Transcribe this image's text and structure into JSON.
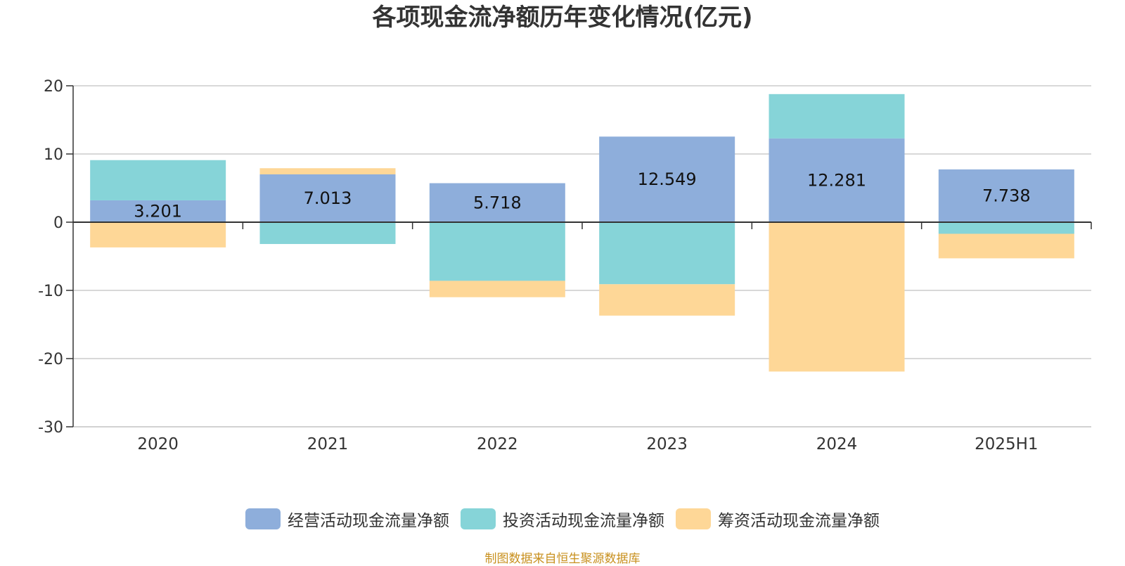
{
  "title": "各项现金流净额历年变化情况(亿元)",
  "source_note": "制图数据来自恒生聚源数据库",
  "chart_data": {
    "type": "bar",
    "stacked": true,
    "categories": [
      "2020",
      "2021",
      "2022",
      "2023",
      "2024",
      "2025H1"
    ],
    "series": [
      {
        "name": "经营活动现金流量净额",
        "color": "#8eaedb",
        "values": [
          3.201,
          7.013,
          5.718,
          12.549,
          12.281,
          7.738
        ]
      },
      {
        "name": "投资活动现金流量净额",
        "color": "#86d4d8",
        "values": [
          5.9,
          -3.2,
          -8.6,
          -9.1,
          6.5,
          -1.7
        ]
      },
      {
        "name": "筹资活动现金流量净额",
        "color": "#fed797",
        "values": [
          -3.7,
          0.9,
          -2.4,
          -4.6,
          -21.9,
          -3.6
        ]
      }
    ],
    "data_labels": [
      "3.201",
      "7.013",
      "5.718",
      "12.549",
      "12.281",
      "7.738"
    ],
    "ylim": [
      -30,
      20
    ],
    "yticks": [
      20,
      10,
      0,
      -10,
      -20,
      -30
    ],
    "grid": true,
    "legend_position": "bottom",
    "xlabel": "",
    "ylabel": ""
  }
}
